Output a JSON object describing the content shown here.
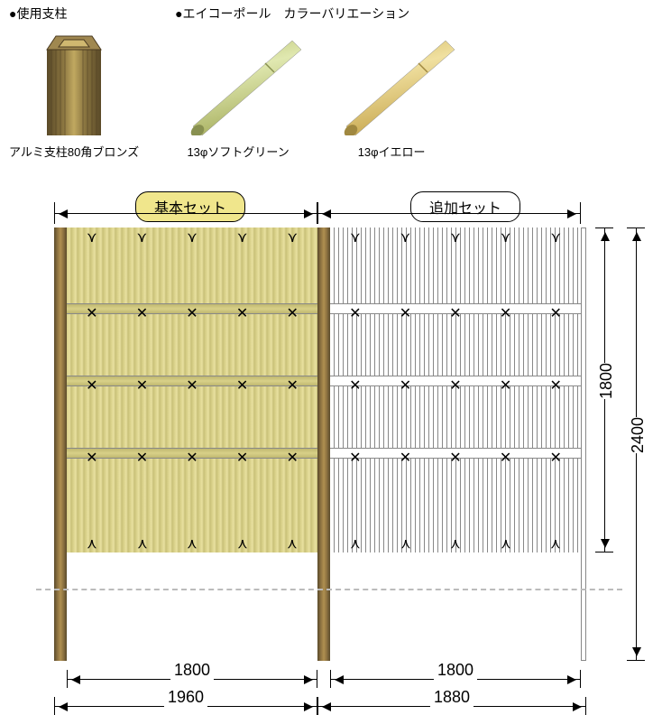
{
  "top": {
    "post_title": "●使用支柱",
    "post_caption": "アルミ支柱80角ブロンズ",
    "pole_title": "●エイコーポール　カラーバリエーション",
    "pole1_caption": "13φソフトグリーン",
    "pole2_caption": "13φイエロー",
    "pole1_color": "#c8d088",
    "pole2_color": "#e8d078"
  },
  "diagram": {
    "badge_basic": "基本セット",
    "badge_add": "追加セット",
    "dim_inner_basic": "1800",
    "dim_inner_add": "1800",
    "dim_outer_basic": "1960",
    "dim_outer_add": "1880",
    "dim_height_panel": "1800",
    "dim_height_total": "2400",
    "knot_rows_y": [
      8,
      88,
      168,
      248,
      340
    ],
    "band_rows_y": [
      84,
      164,
      244
    ],
    "knots_per_row": 5,
    "post_color": "#8a7040"
  }
}
